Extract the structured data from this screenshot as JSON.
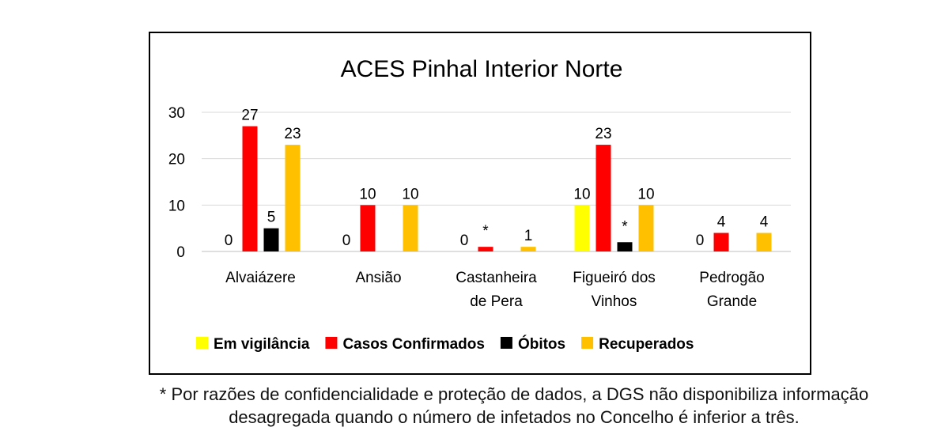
{
  "chart_data": {
    "type": "bar",
    "title": "ACES Pinhal Interior Norte",
    "categories": [
      [
        "Alvaiázere"
      ],
      [
        "Ansião"
      ],
      [
        "Castanheira",
        "de Pera"
      ],
      [
        "Figueiró dos",
        "Vinhos"
      ],
      [
        "Pedrogão",
        "Grande"
      ]
    ],
    "ylim": [
      0,
      30
    ],
    "yticks": [
      0,
      10,
      20,
      30
    ],
    "grid": true,
    "legend_position": "bottom",
    "series": [
      {
        "name": "Em vigilância",
        "color": "#FFFF00",
        "values": [
          0,
          0,
          0,
          10,
          0
        ],
        "labels": [
          "0",
          "0",
          "0",
          "10",
          "0"
        ]
      },
      {
        "name": "Casos Confirmados",
        "color": "#FF0000",
        "values": [
          27,
          10,
          1,
          23,
          4
        ],
        "labels": [
          "27",
          "10",
          "*",
          "23",
          "4"
        ]
      },
      {
        "name": "Óbitos",
        "color": "#000000",
        "values": [
          5,
          null,
          null,
          2,
          null
        ],
        "labels": [
          "5",
          "",
          "",
          "*",
          ""
        ]
      },
      {
        "name": "Recuperados",
        "color": "#FFC000",
        "values": [
          23,
          10,
          1,
          10,
          4
        ],
        "labels": [
          "23",
          "10",
          "1",
          "10",
          "4"
        ]
      }
    ]
  },
  "footnote": {
    "line1": "* Por razões de confidencialidade e proteção de dados, a DGS não disponibiliza informação",
    "line2": "desagregada quando o número de infetados no Concelho é inferior a três."
  }
}
